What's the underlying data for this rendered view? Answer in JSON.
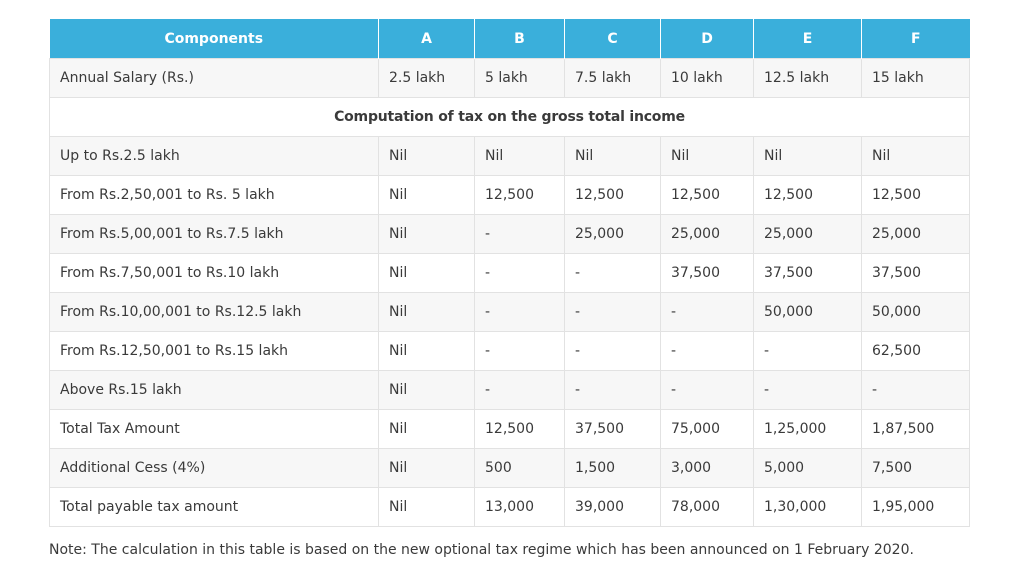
{
  "header": {
    "components": "Components",
    "columns": [
      "A",
      "B",
      "C",
      "D",
      "E",
      "F"
    ]
  },
  "salary_row": {
    "label": "Annual Salary (Rs.)",
    "values": [
      "2.5 lakh",
      "5 lakh",
      "7.5 lakh",
      "10 lakh",
      "12.5 lakh",
      "15 lakh"
    ]
  },
  "section_title": "Computation of tax on the gross total income",
  "rows": [
    {
      "label": "Up to Rs.2.5 lakh",
      "values": [
        "Nil",
        "Nil",
        "Nil",
        "Nil",
        "Nil",
        "Nil"
      ]
    },
    {
      "label": "From Rs.2,50,001 to Rs. 5 lakh",
      "values": [
        "Nil",
        "12,500",
        "12,500",
        "12,500",
        "12,500",
        "12,500"
      ]
    },
    {
      "label": "From Rs.5,00,001 to Rs.7.5 lakh",
      "values": [
        "Nil",
        "-",
        "25,000",
        "25,000",
        "25,000",
        "25,000"
      ]
    },
    {
      "label": "From Rs.7,50,001 to Rs.10 lakh",
      "values": [
        "Nil",
        "-",
        "-",
        "37,500",
        "37,500",
        "37,500"
      ]
    },
    {
      "label": "From Rs.10,00,001 to Rs.12.5 lakh",
      "values": [
        "Nil",
        "-",
        "-",
        "-",
        "50,000",
        "50,000"
      ]
    },
    {
      "label": "From Rs.12,50,001 to Rs.15 lakh",
      "values": [
        "Nil",
        "-",
        "-",
        "-",
        "-",
        "62,500"
      ]
    },
    {
      "label": "Above Rs.15 lakh",
      "values": [
        "Nil",
        "-",
        "-",
        "-",
        "-",
        "-"
      ]
    },
    {
      "label": "Total Tax Amount",
      "values": [
        "Nil",
        "12,500",
        "37,500",
        "75,000",
        "1,25,000",
        "1,87,500"
      ]
    },
    {
      "label": "Additional Cess (4%)",
      "values": [
        "Nil",
        "500",
        "1,500",
        "3,000",
        "5,000",
        "7,500"
      ]
    },
    {
      "label": "Total payable tax amount",
      "values": [
        "Nil",
        "13,000",
        "39,000",
        "78,000",
        "1,30,000",
        "1,95,000"
      ]
    }
  ],
  "note": "Note: The calculation in this table is based on the new optional tax regime which has been announced on 1 February 2020.",
  "colors": {
    "header_bg": "#3aafdb",
    "header_text": "#ffffff",
    "stripe": "#f7f7f7",
    "border": "#e2e2e2",
    "text": "#3a3a3a"
  }
}
